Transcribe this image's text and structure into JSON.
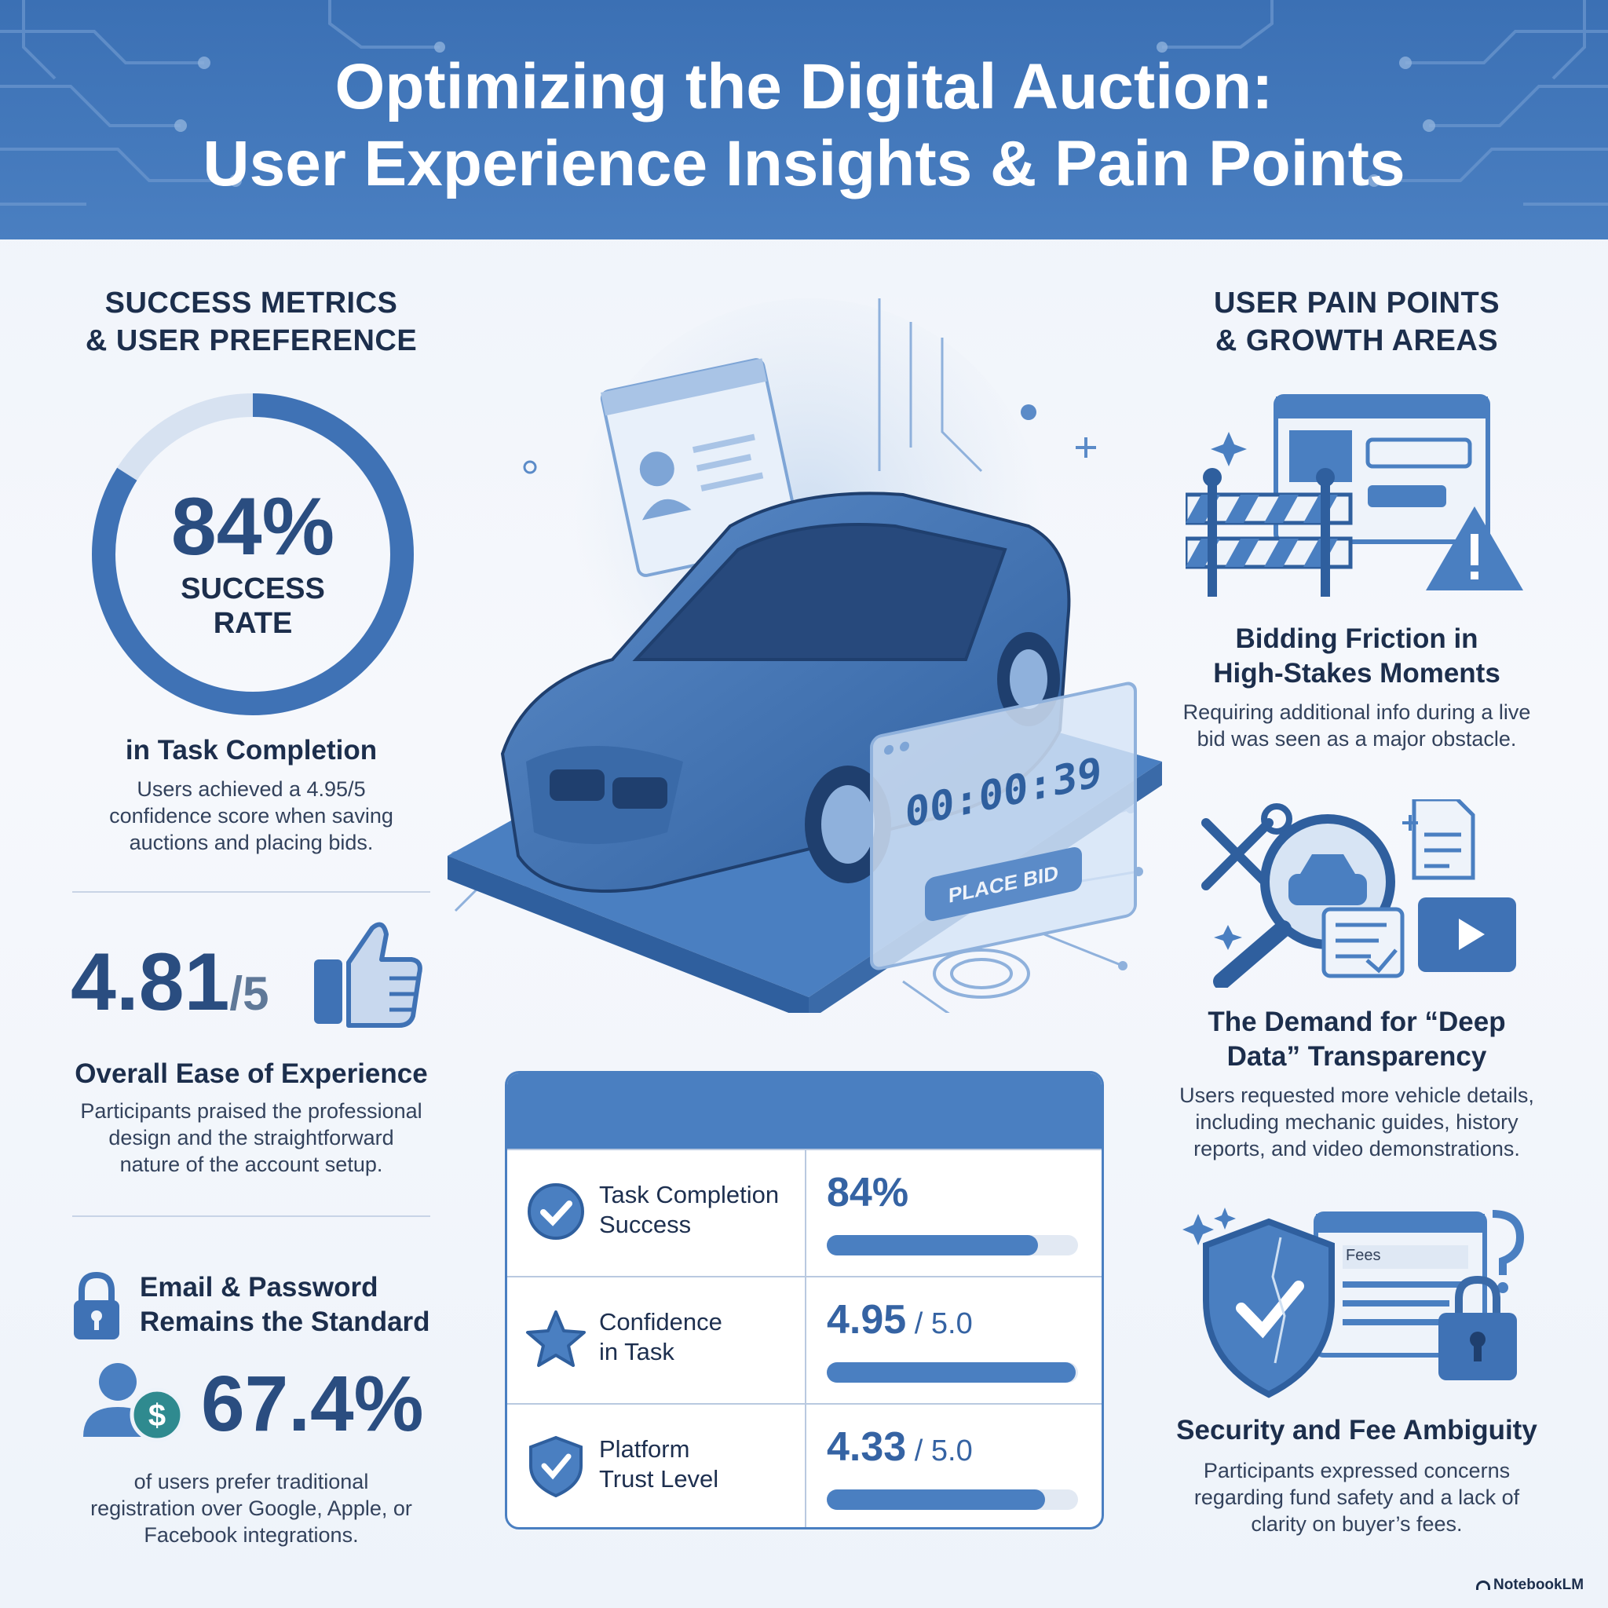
{
  "header": {
    "title_line1": "Optimizing the Digital Auction:",
    "title_line2": "User Experience Insights & Pain Points"
  },
  "left": {
    "heading_line1": "SUCCESS METRICS",
    "heading_line2": "& USER PREFERENCE",
    "success_ring": {
      "value": "84%",
      "label_line1": "SUCCESS",
      "label_line2": "RATE",
      "fraction": 0.84
    },
    "task_completion": {
      "heading": "in Task Completion",
      "line1": "Users achieved a 4.95/5",
      "line2": "confidence score when saving",
      "line3": "auctions and placing bids."
    },
    "ease": {
      "value": "4.81",
      "denominator": "/5",
      "heading": "Overall Ease of Experience",
      "line1": "Participants praised the professional",
      "line2": "design and the straightforward",
      "line3": "nature of the account setup."
    },
    "login": {
      "heading_line1": "Email & Password",
      "heading_line2": "Remains the Standard",
      "value": "67.4%",
      "line1": "of users prefer traditional",
      "line2": "registration over Google, Apple, or",
      "line3": "Facebook integrations."
    }
  },
  "center": {
    "timer": "00:00:39",
    "bid_button": "PLACE BID"
  },
  "table": {
    "rows": [
      {
        "label_line1": "Task Completion",
        "label_line2": "Success",
        "value": "84%",
        "denominator": "",
        "fill": 0.84,
        "icon": "check-circle-icon"
      },
      {
        "label_line1": "Confidence",
        "label_line2": "in Task",
        "value": "4.95",
        "denominator": "/ 5.0",
        "fill": 0.99,
        "icon": "star-icon"
      },
      {
        "label_line1": "Platform",
        "label_line2": "Trust Level",
        "value": "4.33",
        "denominator": "/ 5.0",
        "fill": 0.87,
        "icon": "shield-check-icon"
      }
    ]
  },
  "right": {
    "heading_line1": "USER PAIN POINTS",
    "heading_line2": "& GROWTH AREAS",
    "friction": {
      "heading_line1": "Bidding Friction in",
      "heading_line2": "High-Stakes Moments",
      "line1": "Requiring additional info during a live",
      "line2": "bid was seen as a major obstacle."
    },
    "deep_data": {
      "heading_line1": "The Demand for “Deep",
      "heading_line2": "Data” Transparency",
      "line1": "Users requested more vehicle details,",
      "line2": "including mechanic guides, history",
      "line3": "reports, and video demonstrations."
    },
    "security": {
      "fees_label": "Fees",
      "heading": "Security and Fee Ambiguity",
      "line1": "Participants expressed concerns",
      "line2": "regarding fund safety and a lack of",
      "line3": "clarity on buyer’s fees."
    }
  },
  "footer": {
    "brand": "NotebookLM"
  }
}
